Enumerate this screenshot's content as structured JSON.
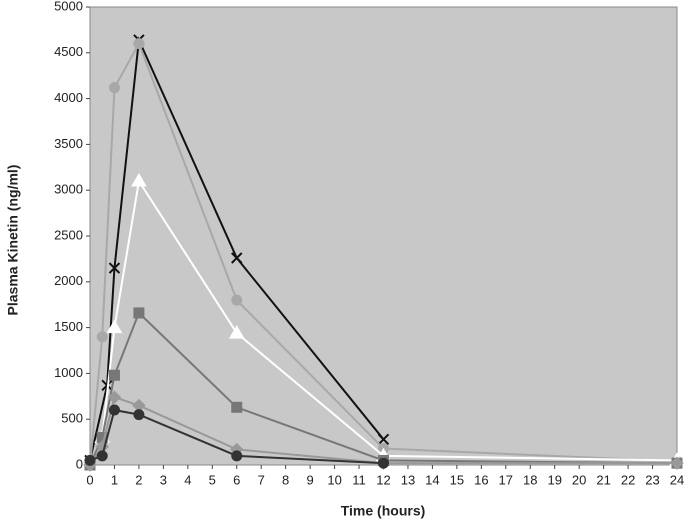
{
  "chart_data": {
    "type": "line",
    "x_label": "Time (hours)",
    "y_label": "Plasma Kinetin (ng/ml)",
    "xlim": [
      0,
      24
    ],
    "xticks": [
      0,
      1,
      2,
      3,
      4,
      5,
      6,
      7,
      8,
      9,
      10,
      11,
      12,
      13,
      14,
      15,
      16,
      17,
      18,
      19,
      20,
      21,
      22,
      23,
      24
    ],
    "ylim": [
      0,
      5000
    ],
    "yticks": [
      0,
      500,
      1000,
      1500,
      2000,
      2500,
      3000,
      3500,
      4000,
      4500,
      5000
    ],
    "background": "#c8c8c8",
    "series": [
      {
        "color": "#111111",
        "marker": "x",
        "x": [
          0,
          0.7,
          1,
          2,
          6,
          12
        ],
        "values": [
          50,
          870,
          2150,
          4640,
          2260,
          280
        ]
      },
      {
        "color": "#a8a8a8",
        "marker": "circle",
        "x": [
          0,
          0.5,
          1,
          2,
          6,
          12,
          24
        ],
        "values": [
          0,
          1400,
          4120,
          4600,
          1800,
          180,
          40
        ]
      },
      {
        "color": "#ffffff",
        "marker": "triangle",
        "x": [
          0,
          0.5,
          1,
          2,
          6,
          12,
          24
        ],
        "values": [
          0,
          300,
          1500,
          3100,
          1440,
          100,
          50
        ]
      },
      {
        "color": "#777777",
        "marker": "square",
        "x": [
          0,
          0.5,
          1,
          2,
          6,
          12,
          24
        ],
        "values": [
          0,
          300,
          980,
          1660,
          630,
          50,
          20
        ]
      },
      {
        "color": "#999999",
        "marker": "diamond",
        "x": [
          0,
          0.5,
          1,
          2,
          6,
          12,
          24
        ],
        "values": [
          0,
          200,
          740,
          650,
          170,
          20,
          20
        ]
      },
      {
        "color": "#333333",
        "marker": "circle",
        "x": [
          0,
          0.5,
          1,
          2,
          6,
          12
        ],
        "values": [
          50,
          100,
          600,
          550,
          100,
          20
        ]
      }
    ]
  }
}
